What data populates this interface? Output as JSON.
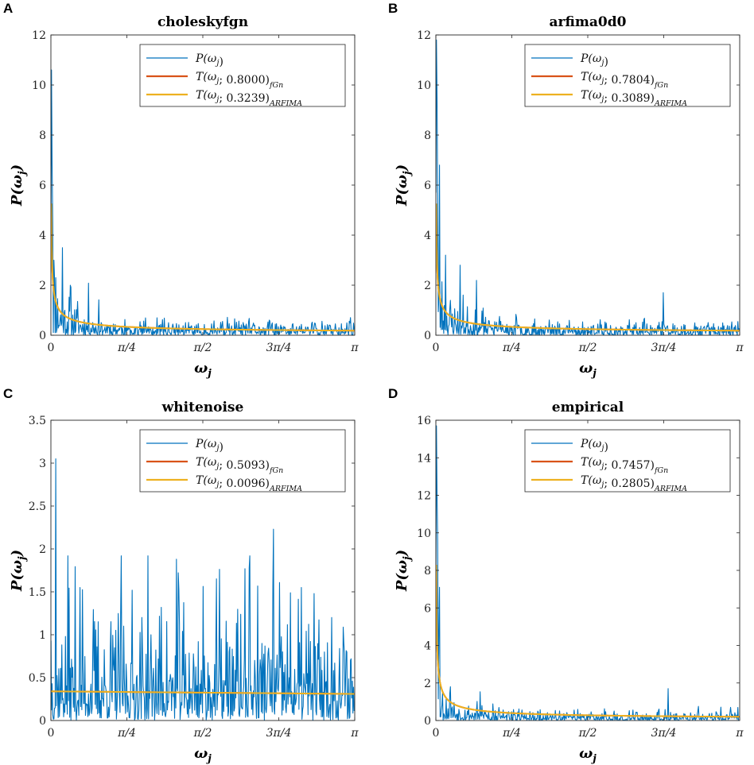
{
  "figure": {
    "style": {
      "p_color": "#0072BD",
      "fgn_color": "#D95319",
      "arfima_color": "#EDB120"
    }
  },
  "chart_data": [
    {
      "type": "line",
      "panel": "A",
      "title": "choleskyfgn",
      "xlabel": "ω_j",
      "ylabel": "P(ω_j)",
      "xlim": [
        0,
        3.14159
      ],
      "ylim": [
        0,
        12
      ],
      "yticks": [
        0,
        2,
        4,
        6,
        8,
        10,
        12
      ],
      "xticks": [
        0,
        0.7854,
        1.5708,
        2.3562,
        3.14159
      ],
      "xtick_labels": [
        "0",
        "π/4",
        "π/2",
        "3π/4",
        "π"
      ],
      "legend": [
        "P(ω_j)",
        "T(ω_j; 0.8000)_fGn",
        "T(ω_j; 0.3239)_ARFIMA"
      ],
      "legend_position": "top-right",
      "series": [
        {
          "name": "P(ω_j)",
          "kind": "periodogram",
          "peaks": [
            10.6,
            6.8,
            4.5,
            3.0,
            2.3,
            3.5,
            2.0
          ],
          "peak_x": [
            0.006,
            0.012,
            0.02,
            0.03,
            0.05,
            0.12,
            0.2
          ],
          "baseline_mean": 0.3,
          "noise_scale": 0.45,
          "late_max": 0.6,
          "n": 500,
          "seed": 11
        },
        {
          "name": "T(ω_j; 0.8000)_fGn",
          "kind": "powerlaw",
          "a": 0.25,
          "b": 0.55,
          "floor": 0.05
        },
        {
          "name": "T(ω_j; 0.3239)_ARFIMA",
          "kind": "powerlaw",
          "a": 0.25,
          "b": 0.55,
          "floor": 0.05
        }
      ]
    },
    {
      "type": "line",
      "panel": "B",
      "title": "arfima0d0",
      "xlabel": "ω_j",
      "ylabel": "P(ω_j)",
      "xlim": [
        0,
        3.14159
      ],
      "ylim": [
        0,
        12
      ],
      "yticks": [
        0,
        2,
        4,
        6,
        8,
        10,
        12
      ],
      "xticks": [
        0,
        0.7854,
        1.5708,
        2.3562,
        3.14159
      ],
      "xtick_labels": [
        "0",
        "π/4",
        "π/2",
        "3π/4",
        "π"
      ],
      "legend": [
        "P(ω_j)",
        "T(ω_j; 0.7804)_fGn",
        "T(ω_j; 0.3089)_ARFIMA"
      ],
      "legend_position": "top-right",
      "series": [
        {
          "name": "P(ω_j)",
          "kind": "periodogram",
          "peaks": [
            11.8,
            9.5,
            5.0,
            6.8,
            3.2,
            2.8,
            1.7
          ],
          "peak_x": [
            0.006,
            0.012,
            0.02,
            0.035,
            0.1,
            0.25,
            2.35
          ],
          "baseline_mean": 0.28,
          "noise_scale": 0.42,
          "late_max": 0.7,
          "n": 500,
          "seed": 23
        },
        {
          "name": "T(ω_j; 0.7804)_fGn",
          "kind": "powerlaw",
          "a": 0.25,
          "b": 0.55,
          "floor": 0.05
        },
        {
          "name": "T(ω_j; 0.3089)_ARFIMA",
          "kind": "powerlaw",
          "a": 0.25,
          "b": 0.55,
          "floor": 0.05
        }
      ]
    },
    {
      "type": "line",
      "panel": "C",
      "title": "whitenoise",
      "xlabel": "ω_j",
      "ylabel": "P(ω_j)",
      "xlim": [
        0,
        3.14159
      ],
      "ylim": [
        0,
        3.5
      ],
      "yticks": [
        0,
        0.5,
        1,
        1.5,
        2,
        2.5,
        3,
        3.5
      ],
      "xticks": [
        0,
        0.7854,
        1.5708,
        2.3562,
        3.14159
      ],
      "xtick_labels": [
        "0",
        "π/4",
        "π/2",
        "3π/4",
        "π"
      ],
      "legend": [
        "P(ω_j)",
        "T(ω_j; 0.5093)_fGn",
        "T(ω_j; 0.0096)_ARFIMA"
      ],
      "legend_position": "top-right",
      "series": [
        {
          "name": "P(ω_j)",
          "kind": "periodogram",
          "peaks": [
            3.05,
            1.55,
            1.88,
            2.23,
            1.78
          ],
          "peak_x": [
            0.05,
            0.3,
            1.3,
            2.3,
            2.05
          ],
          "baseline_mean": 0.32,
          "noise_scale": 0.6,
          "late_max": 1.6,
          "n": 500,
          "seed": 37
        },
        {
          "name": "T(ω_j; 0.5093)_fGn",
          "kind": "flat",
          "start": 0.34,
          "end": 0.31
        },
        {
          "name": "T(ω_j; 0.0096)_ARFIMA",
          "kind": "flat",
          "start": 0.34,
          "end": 0.31
        }
      ]
    },
    {
      "type": "line",
      "panel": "D",
      "title": "empirical",
      "xlabel": "ω_j",
      "ylabel": "P(ω_j)",
      "xlim": [
        0,
        3.14159
      ],
      "ylim": [
        0,
        16
      ],
      "yticks": [
        0,
        2,
        4,
        6,
        8,
        10,
        12,
        14,
        16
      ],
      "xticks": [
        0,
        0.7854,
        1.5708,
        2.3562,
        3.14159
      ],
      "xtick_labels": [
        "0",
        "π/4",
        "π/2",
        "3π/4",
        "π"
      ],
      "legend": [
        "P(ω_j)",
        "T(ω_j; 0.7457)_fGn",
        "T(ω_j; 0.2805)_ARFIMA"
      ],
      "legend_position": "top-right",
      "series": [
        {
          "name": "P(ω_j)",
          "kind": "periodogram",
          "peaks": [
            15.7,
            12.0,
            9.5,
            7.1,
            4.8,
            1.8,
            1.7
          ],
          "peak_x": [
            0.006,
            0.012,
            0.02,
            0.04,
            0.03,
            0.15,
            2.4
          ],
          "baseline_mean": 0.25,
          "noise_scale": 0.38,
          "late_max": 1.0,
          "n": 500,
          "seed": 53
        },
        {
          "name": "T(ω_j; 0.7457)_fGn",
          "kind": "powerlaw",
          "a": 0.3,
          "b": 0.6,
          "floor": 0.05
        },
        {
          "name": "T(ω_j; 0.2805)_ARFIMA",
          "kind": "powerlaw",
          "a": 0.3,
          "b": 0.6,
          "floor": 0.05
        }
      ]
    }
  ]
}
